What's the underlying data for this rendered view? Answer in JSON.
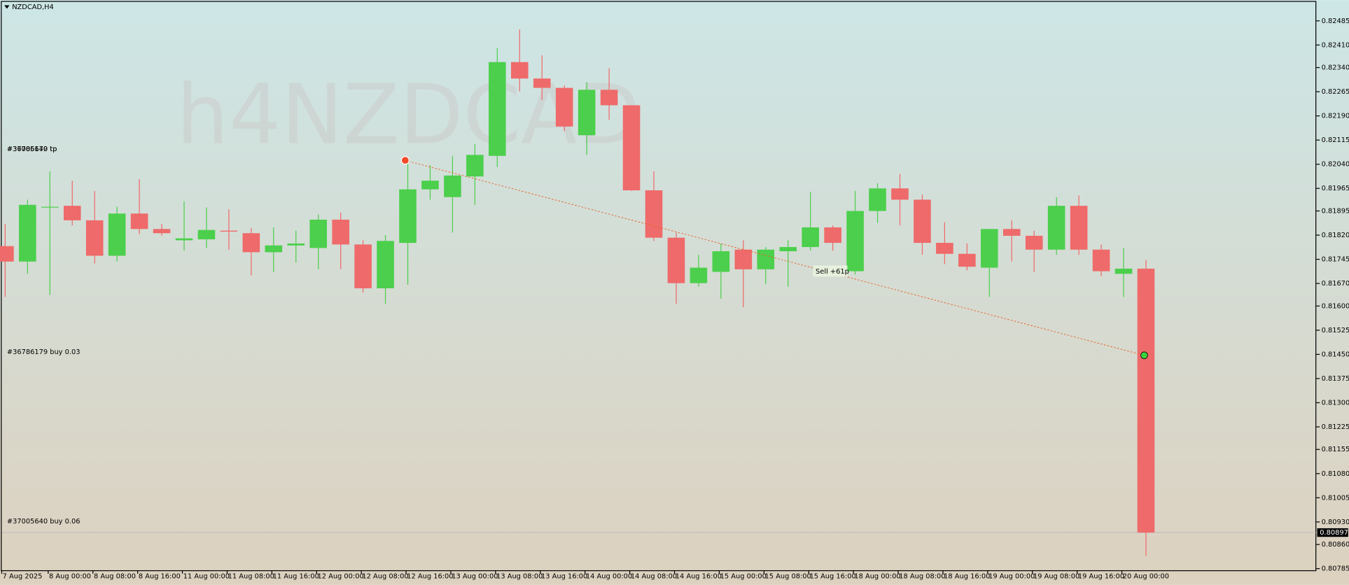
{
  "chart_data": {
    "type": "candlestick",
    "title": "NZDCAD,H4",
    "watermark": "h4NZDCAD",
    "categories": [
      "7 Aug 2025",
      null,
      "8 Aug 00:00",
      null,
      "8 Aug 08:00",
      null,
      "8 Aug 16:00",
      null,
      "11 Aug 00:00",
      null,
      "11 Aug 08:00",
      null,
      "11 Aug 16:00",
      null,
      "12 Aug 00:00",
      null,
      "12 Aug 08:00",
      null,
      "12 Aug 16:00",
      null,
      "13 Aug 00:00",
      null,
      "13 Aug 08:00",
      null,
      "13 Aug 16:00",
      null,
      "14 Aug 00:00",
      null,
      "14 Aug 08:00",
      null,
      "14 Aug 16:00",
      null,
      "15 Aug 00:00",
      null,
      "15 Aug 08:00",
      null,
      "15 Aug 16:00",
      null,
      "18 Aug 00:00",
      null,
      "18 Aug 08:00",
      null,
      "18 Aug 16:00",
      null,
      "19 Aug 00:00",
      null,
      "19 Aug 08:00",
      null,
      "19 Aug 16:00",
      null,
      "20 Aug 00:00",
      null
    ],
    "open": [
      0.81786,
      0.81738,
      0.81908,
      0.81911,
      0.81866,
      0.81756,
      0.81887,
      0.81839,
      0.81804,
      0.81807,
      0.81834,
      0.81826,
      0.81767,
      0.81788,
      0.8178,
      0.81868,
      0.81791,
      0.81655,
      0.81796,
      0.81962,
      0.81938,
      0.82002,
      0.82066,
      0.82357,
      0.82306,
      0.82277,
      0.8213,
      0.82271,
      0.82223,
      0.81959,
      0.81812,
      0.81671,
      0.81706,
      0.81775,
      0.81714,
      0.8177,
      0.81783,
      0.81844,
      0.81708,
      0.81895,
      0.81965,
      0.8193,
      0.81796,
      0.81762,
      0.81719,
      0.81839,
      0.81818,
      0.81775,
      0.81911,
      0.81775,
      0.817,
      0.81716
    ],
    "high": [
      0.81855,
      0.8193,
      0.82018,
      0.81989,
      0.81957,
      0.81908,
      0.81994,
      0.81855,
      0.81925,
      0.81906,
      0.819,
      0.81842,
      0.81844,
      0.81834,
      0.81884,
      0.8189,
      0.81804,
      0.8182,
      0.82042,
      0.82037,
      0.82066,
      0.82103,
      0.824,
      0.82458,
      0.82378,
      0.82285,
      0.82295,
      0.82338,
      0.82223,
      0.82018,
      0.81828,
      0.81759,
      0.81794,
      0.81804,
      0.81783,
      0.81804,
      0.81954,
      0.8185,
      0.81957,
      0.81981,
      0.8201,
      0.81946,
      0.8186,
      0.81794,
      0.81839,
      0.81866,
      0.81834,
      0.81938,
      0.81943,
      0.81791,
      0.8178,
      0.81743
    ],
    "low": [
      0.81628,
      0.817,
      0.81634,
      0.8185,
      0.81732,
      0.81738,
      0.81823,
      0.81818,
      0.81772,
      0.8178,
      0.81775,
      0.81695,
      0.81706,
      0.81735,
      0.81714,
      0.81714,
      0.81642,
      0.81607,
      0.81666,
      0.8193,
      0.81828,
      0.81914,
      0.82031,
      0.82266,
      0.82239,
      0.82143,
      0.82069,
      0.82178,
      0.81957,
      0.81802,
      0.81607,
      0.8166,
      0.81623,
      0.81596,
      0.81668,
      0.8166,
      0.81772,
      0.81772,
      0.81698,
      0.81858,
      0.8185,
      0.81759,
      0.8173,
      0.81711,
      0.81628,
      0.81738,
      0.81706,
      0.81759,
      0.81759,
      0.81692,
      0.81628,
      0.80825
    ],
    "close": [
      0.81738,
      0.81914,
      0.81908,
      0.81866,
      0.81756,
      0.81887,
      0.81839,
      0.81826,
      0.8181,
      0.81836,
      0.81831,
      0.81767,
      0.81788,
      0.81794,
      0.81868,
      0.81791,
      0.81655,
      0.81802,
      0.81962,
      0.81989,
      0.82005,
      0.82069,
      0.82357,
      0.82306,
      0.82277,
      0.82157,
      0.82271,
      0.82223,
      0.81959,
      0.81812,
      0.81671,
      0.81719,
      0.8177,
      0.81714,
      0.81775,
      0.81783,
      0.81844,
      0.81796,
      0.81895,
      0.81965,
      0.8193,
      0.81796,
      0.81762,
      0.81722,
      0.81839,
      0.81818,
      0.81775,
      0.81911,
      0.81775,
      0.81708,
      0.81716,
      0.80897
    ],
    "up_color": "#4ccf4c",
    "down_color": "#ef6a6a",
    "ylim": [
      0.8078,
      0.82544
    ],
    "yticks": [
      0.82485,
      {
        "value": 0.8241,
        "label": "0.82410"
      },
      {
        "value": 0.8234,
        "label": "0.82340"
      },
      0.82265,
      {
        "value": 0.8219,
        "label": "0.82190"
      },
      0.82115,
      {
        "value": 0.8204,
        "label": "0.82040"
      },
      0.81965,
      0.81895,
      {
        "value": 0.8182,
        "label": "0.81820"
      },
      0.81745,
      {
        "value": 0.8167,
        "label": "0.81670"
      },
      {
        "value": 0.816,
        "label": "0.81600"
      },
      0.81525,
      {
        "value": 0.8145,
        "label": "0.81450"
      },
      0.81375,
      {
        "value": 0.813,
        "label": "0.81300"
      },
      0.81225,
      0.81155,
      {
        "value": 0.8108,
        "label": "0.81080"
      },
      0.81005,
      {
        "value": 0.8093,
        "label": "0.80930"
      },
      {
        "value": 0.8086,
        "label": "0.80860"
      },
      0.80785
    ],
    "current_price": 0.80897,
    "orders": [
      {
        "label": "#37005640 tp",
        "price": 0.82087
      },
      {
        "label": "#36786179 tp",
        "price": 0.82087
      },
      {
        "label": "#36786179 buy 0.03",
        "price": 0.81457
      },
      {
        "label": "#37005640 buy 0.06",
        "price": 0.80932
      }
    ],
    "trade": {
      "label": "Sell +61p",
      "entry": 0.82052,
      "exit": 0.81447
    }
  }
}
